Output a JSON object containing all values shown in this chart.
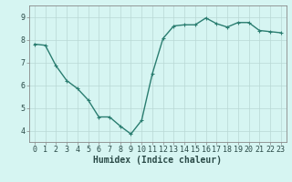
{
  "x": [
    0,
    1,
    2,
    3,
    4,
    5,
    6,
    7,
    8,
    9,
    10,
    11,
    12,
    13,
    14,
    15,
    16,
    17,
    18,
    19,
    20,
    21,
    22,
    23
  ],
  "y": [
    7.8,
    7.75,
    6.85,
    6.2,
    5.85,
    5.35,
    4.6,
    4.6,
    4.2,
    3.85,
    4.45,
    6.5,
    8.05,
    8.6,
    8.65,
    8.65,
    8.95,
    8.7,
    8.55,
    8.75,
    8.75,
    8.4,
    8.35,
    8.3
  ],
  "line_color": "#2a7d70",
  "marker": "+",
  "markersize": 3,
  "linewidth": 1.0,
  "xlabel": "Humidex (Indice chaleur)",
  "xlabel_fontsize": 7,
  "bg_color": "#d6f5f2",
  "grid_color": "#b8d8d4",
  "ylim": [
    3.5,
    9.5
  ],
  "xlim": [
    -0.5,
    23.5
  ],
  "yticks": [
    4,
    5,
    6,
    7,
    8,
    9
  ],
  "xticks": [
    0,
    1,
    2,
    3,
    4,
    5,
    6,
    7,
    8,
    9,
    10,
    11,
    12,
    13,
    14,
    15,
    16,
    17,
    18,
    19,
    20,
    21,
    22,
    23
  ],
  "tick_labelsize": 6,
  "spine_color": "#888888"
}
